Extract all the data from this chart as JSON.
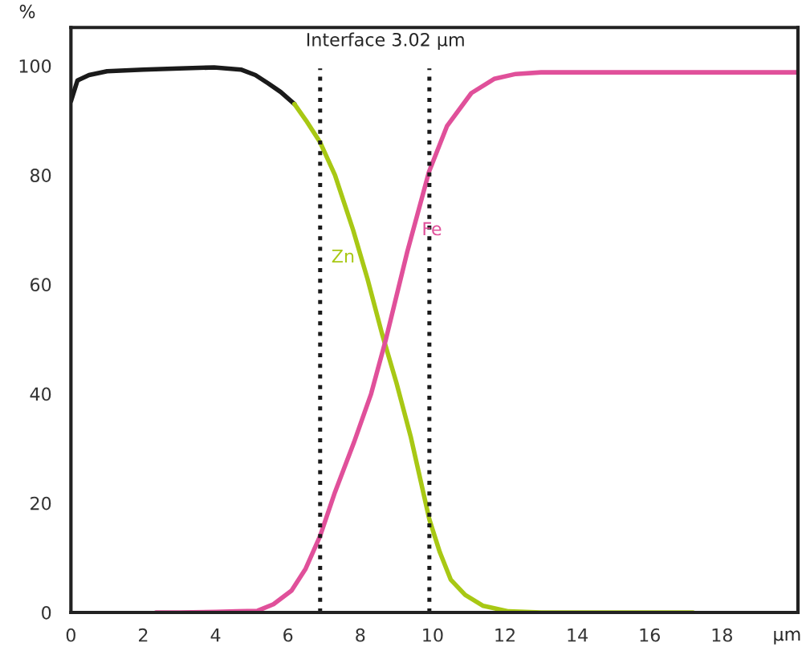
{
  "chart_data": {
    "type": "line",
    "xlabel": "µm",
    "ylabel": "%",
    "xlim": [
      0,
      20.1
    ],
    "ylim": [
      0,
      107
    ],
    "xticks": [
      0,
      2,
      4,
      6,
      8,
      10,
      12,
      14,
      16,
      18
    ],
    "yticks": [
      0,
      20,
      40,
      60,
      80,
      100
    ],
    "grid": false,
    "legend": false,
    "marker": "none",
    "line_style": "solid",
    "series": [
      {
        "color": "#1a1a1a",
        "x": [
          0,
          0.18,
          0.5,
          1.0,
          2.0,
          3.0,
          3.96,
          4.7,
          5.1,
          5.45,
          5.8,
          6.18
        ],
        "values": [
          93.5,
          97.3,
          98.3,
          99,
          99.3,
          99.5,
          99.7,
          99.3,
          98.3,
          96.8,
          95.2,
          93
        ]
      },
      {
        "name": "Zn",
        "color": "#a8c814",
        "x": [
          6.18,
          6.5,
          6.89,
          7.3,
          7.8,
          8.2,
          8.6,
          9.0,
          9.4,
          9.91,
          10.2,
          10.5,
          10.9,
          11.4,
          12.1,
          13,
          15,
          17.2
        ],
        "values": [
          93,
          90,
          86,
          80,
          70,
          61,
          51,
          42,
          32,
          17,
          11,
          6,
          3.2,
          1.2,
          0.2,
          0,
          0,
          0
        ]
      },
      {
        "name": "Fe",
        "color": "#e0509a",
        "x": [
          2.35,
          3,
          4,
          4.6,
          5.16,
          5.6,
          6.1,
          6.49,
          6.89,
          7.3,
          7.82,
          8.3,
          8.71,
          9.3,
          9.9,
          10.4,
          11.07,
          11.7,
          12.3,
          13,
          15,
          17,
          20.1
        ],
        "values": [
          0,
          0,
          0.1,
          0.2,
          0.3,
          1.5,
          4,
          8,
          14,
          22,
          31,
          40,
          50,
          66,
          80.6,
          89,
          95,
          97.6,
          98.5,
          98.8,
          98.8,
          98.8,
          98.8
        ]
      }
    ],
    "ref_lines": [
      {
        "axis": "x",
        "value": 6.89,
        "color": "#1a1a1a",
        "line_style": "dotted"
      },
      {
        "axis": "x",
        "value": 9.91,
        "color": "#1a1a1a",
        "line_style": "dotted"
      }
    ],
    "annotations": [
      "Interface 3.02 µm"
    ]
  }
}
